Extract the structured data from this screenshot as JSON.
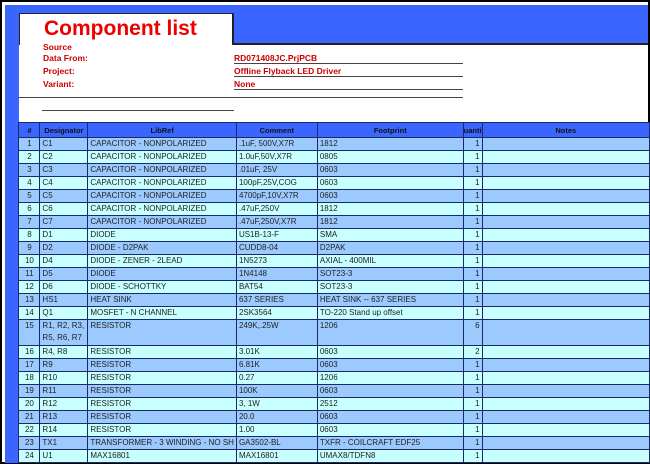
{
  "header": {
    "title": "Component list",
    "source_label": "Source",
    "fields": [
      {
        "label": "Data From:",
        "value": "RD071408JC.PrjPCB"
      },
      {
        "label": "Project:",
        "value": "Offline Flyback LED Driver"
      },
      {
        "label": "Variant:",
        "value": "None"
      }
    ]
  },
  "colors": {
    "header_blue": "#3a66ff",
    "row_light_blue": "#9ccaff",
    "row_cyan": "#c8ffff",
    "title_red": "#ee0000"
  },
  "table": {
    "columns": [
      "#",
      "Designator",
      "LibRef",
      "Comment",
      "Footprint",
      "uanti",
      "Notes"
    ],
    "rows": [
      [
        "1",
        "C1",
        "CAPACITOR - NONPOLARIZED",
        ".1uF, 500V,X7R",
        "1812",
        "1",
        ""
      ],
      [
        "2",
        "C2",
        "CAPACITOR - NONPOLARIZED",
        "1.0uF,50V,X7R",
        "0805",
        "1",
        ""
      ],
      [
        "3",
        "C3",
        "CAPACITOR - NONPOLARIZED",
        ".01uF, 25V",
        "0603",
        "1",
        ""
      ],
      [
        "4",
        "C4",
        "CAPACITOR - NONPOLARIZED",
        "100pF,25V,COG",
        "0603",
        "1",
        ""
      ],
      [
        "5",
        "C5",
        "CAPACITOR - NONPOLARIZED",
        "4700pF,10V,X7R",
        "0603",
        "1",
        ""
      ],
      [
        "6",
        "C6",
        "CAPACITOR - NONPOLARIZED",
        ".47uF,250V",
        "1812",
        "1",
        ""
      ],
      [
        "7",
        "C7",
        "CAPACITOR - NONPOLARIZED",
        ".47uF,250V,X7R",
        "1812",
        "1",
        ""
      ],
      [
        "8",
        "D1",
        "DIODE",
        "US1B-13-F",
        "SMA",
        "1",
        ""
      ],
      [
        "9",
        "D2",
        "DIODE - D2PAK",
        "CUDD8-04",
        "D2PAK",
        "1",
        ""
      ],
      [
        "10",
        "D4",
        "DIODE - ZENER - 2LEAD",
        "1N5273",
        "AXIAL - 400MIL",
        "1",
        ""
      ],
      [
        "11",
        "D5",
        "DIODE",
        "1N4148",
        "SOT23-3",
        "1",
        ""
      ],
      [
        "12",
        "D6",
        "DIODE - SCHOTTKY",
        "BAT54",
        "SOT23-3",
        "1",
        ""
      ],
      [
        "13",
        "HS1",
        "HEAT SINK",
        "637 SERIES",
        "HEAT SINK -- 637 SERIES",
        "1",
        ""
      ],
      [
        "14",
        "Q1",
        "MOSFET - N CHANNEL",
        "2SK3564",
        "TO-220 Stand up offset",
        "1",
        ""
      ],
      [
        "15",
        "R1, R2, R3, R5, R6, R7",
        "RESISTOR",
        "249K,.25W",
        "1206",
        "6",
        ""
      ],
      [
        "16",
        "R4, R8",
        "RESISTOR",
        "3.01K",
        "0603",
        "2",
        ""
      ],
      [
        "17",
        "R9",
        "RESISTOR",
        "6.81K",
        "0603",
        "1",
        ""
      ],
      [
        "18",
        "R10",
        "RESISTOR",
        "0.27",
        "1206",
        "1",
        ""
      ],
      [
        "19",
        "R11",
        "RESISTOR",
        "100K",
        "0603",
        "1",
        ""
      ],
      [
        "20",
        "R12",
        "RESISTOR",
        "3, 1W",
        "2512",
        "1",
        ""
      ],
      [
        "21",
        "R13",
        "RESISTOR",
        "20.0",
        "0603",
        "1",
        ""
      ],
      [
        "22",
        "R14",
        "RESISTOR",
        "1.00",
        "0603",
        "1",
        ""
      ],
      [
        "23",
        "TX1",
        "TRANSFORMER - 3 WINDING - NO SH",
        "GA3502-BL",
        "TXFR - COILCRAFT EDF25",
        "1",
        ""
      ],
      [
        "24",
        "U1",
        "MAX16801",
        "MAX16801",
        "UMAX8/TDFN8",
        "1",
        ""
      ]
    ]
  }
}
